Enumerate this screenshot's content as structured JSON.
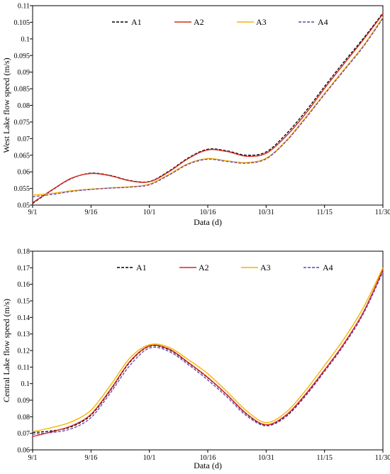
{
  "chart_data": [
    {
      "type": "line",
      "title": "",
      "xlabel": "Data (d)",
      "ylabel": "West Lake flow speed (m/s)",
      "x_ticks": [
        "9/1",
        "9/16",
        "10/1",
        "10/16",
        "10/31",
        "11/15",
        "11/30"
      ],
      "y_ticks": [
        "0.05",
        "0.055",
        "0.06",
        "0.065",
        "0.07",
        "0.075",
        "0.08",
        "0.085",
        "0.09",
        "0.095",
        "0.1",
        "0.105",
        "0.11"
      ],
      "xlim": [
        "9/1",
        "11/30"
      ],
      "ylim": [
        0.05,
        0.11
      ],
      "grid": false,
      "legend_position": "top",
      "x": [
        "9/1",
        "9/6",
        "9/11",
        "9/16",
        "9/21",
        "9/26",
        "10/1",
        "10/6",
        "10/11",
        "10/16",
        "10/21",
        "10/26",
        "10/31",
        "11/5",
        "11/10",
        "11/15",
        "11/20",
        "11/25",
        "11/30"
      ],
      "series": [
        {
          "name": "A1",
          "color": "#000000",
          "dash": "dashed",
          "values": [
            0.0505,
            0.0545,
            0.058,
            0.0596,
            0.0589,
            0.0574,
            0.0571,
            0.0602,
            0.0642,
            0.0668,
            0.0663,
            0.065,
            0.066,
            0.0712,
            0.078,
            0.0857,
            0.0931,
            0.1002,
            0.1078
          ]
        },
        {
          "name": "A2",
          "color": "#d6281f",
          "dash": "solid",
          "values": [
            0.0507,
            0.0546,
            0.0581,
            0.0595,
            0.0588,
            0.0573,
            0.057,
            0.06,
            0.064,
            0.0666,
            0.0661,
            0.0647,
            0.0656,
            0.0706,
            0.0773,
            0.0851,
            0.0925,
            0.0998,
            0.1075
          ]
        },
        {
          "name": "A3",
          "color": "#f5b400",
          "dash": "solid",
          "values": [
            0.053,
            0.0535,
            0.0543,
            0.0548,
            0.0552,
            0.0555,
            0.0563,
            0.0592,
            0.0625,
            0.064,
            0.0633,
            0.0628,
            0.0641,
            0.0692,
            0.0762,
            0.0836,
            0.0908,
            0.098,
            0.1065
          ]
        },
        {
          "name": "A4",
          "color": "#6a3fb0",
          "dash": "dashed",
          "values": [
            0.0525,
            0.0532,
            0.0541,
            0.0547,
            0.0551,
            0.0554,
            0.0561,
            0.059,
            0.0623,
            0.0638,
            0.0631,
            0.0626,
            0.0639,
            0.069,
            0.0759,
            0.0833,
            0.0905,
            0.0977,
            0.1062
          ]
        }
      ]
    },
    {
      "type": "line",
      "title": "",
      "xlabel": "Data (d)",
      "ylabel": "Central Lake flow speed (m/s)",
      "x_ticks": [
        "9/1",
        "9/16",
        "10/1",
        "10/16",
        "10/31",
        "11/15",
        "11/30"
      ],
      "y_ticks": [
        "0.06",
        "0.07",
        "0.08",
        "0.09",
        "0.1",
        "0.11",
        "0.12",
        "0.13",
        "0.14",
        "0.15",
        "0.16",
        "0.17",
        "0.18"
      ],
      "xlim": [
        "9/1",
        "11/30"
      ],
      "ylim": [
        0.06,
        0.18
      ],
      "grid": false,
      "legend_position": "top",
      "x": [
        "9/1",
        "9/6",
        "9/11",
        "9/16",
        "9/21",
        "9/26",
        "10/1",
        "10/6",
        "10/11",
        "10/16",
        "10/21",
        "10/26",
        "10/31",
        "11/5",
        "11/10",
        "11/15",
        "11/20",
        "11/25",
        "11/30"
      ],
      "series": [
        {
          "name": "A1",
          "color": "#000000",
          "dash": "dashed",
          "values": [
            0.0705,
            0.0715,
            0.074,
            0.081,
            0.096,
            0.113,
            0.1225,
            0.1205,
            0.1125,
            0.1035,
            0.093,
            0.0815,
            0.075,
            0.0805,
            0.093,
            0.108,
            0.124,
            0.143,
            0.1685
          ]
        },
        {
          "name": "A2",
          "color": "#d6281f",
          "dash": "solid",
          "values": [
            0.068,
            0.071,
            0.0745,
            0.0815,
            0.0965,
            0.1135,
            0.1228,
            0.121,
            0.1128,
            0.1038,
            0.0932,
            0.0818,
            0.0752,
            0.0808,
            0.0933,
            0.1083,
            0.1243,
            0.1433,
            0.1688
          ]
        },
        {
          "name": "A3",
          "color": "#f5b400",
          "dash": "solid",
          "values": [
            0.071,
            0.0735,
            0.077,
            0.084,
            0.099,
            0.1155,
            0.1235,
            0.122,
            0.1145,
            0.106,
            0.095,
            0.0835,
            0.0765,
            0.0825,
            0.0955,
            0.111,
            0.127,
            0.146,
            0.17
          ]
        },
        {
          "name": "A4",
          "color": "#6a3fb0",
          "dash": "dashed",
          "values": [
            0.0695,
            0.0705,
            0.0728,
            0.0795,
            0.0945,
            0.111,
            0.1215,
            0.1195,
            0.1115,
            0.1022,
            0.0918,
            0.0805,
            0.0745,
            0.0798,
            0.0922,
            0.1073,
            0.1233,
            0.1423,
            0.1675
          ]
        }
      ]
    }
  ]
}
